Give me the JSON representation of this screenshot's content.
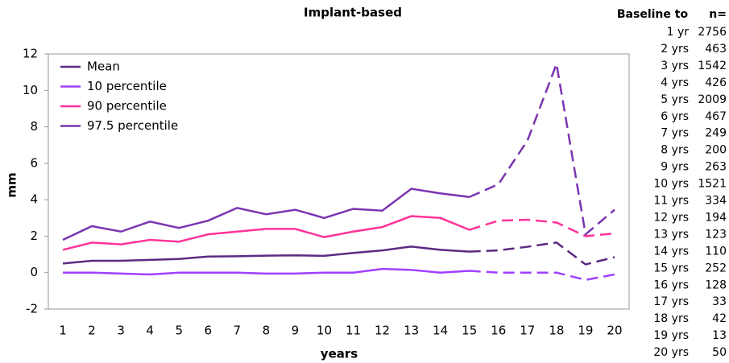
{
  "chart_data": {
    "type": "line",
    "title": "Implant-based",
    "x_label": "years",
    "y_label": "mm",
    "categories": [
      "1",
      "2",
      "3",
      "4",
      "5",
      "6",
      "7",
      "8",
      "9",
      "10",
      "11",
      "12",
      "13",
      "14",
      "15",
      "16",
      "17",
      "18",
      "19",
      "20"
    ],
    "dashed_from": "15",
    "series": [
      {
        "name": "Mean",
        "color": "#5c2a83",
        "values": [
          0.5,
          0.65,
          0.65,
          0.7,
          0.75,
          0.88,
          0.9,
          0.93,
          0.95,
          0.92,
          1.08,
          1.22,
          1.43,
          1.25,
          1.15,
          1.22,
          1.42,
          1.65,
          0.45,
          0.85
        ]
      },
      {
        "name": "10 percentile",
        "color": "#a040ff",
        "values": [
          0,
          0,
          -0.05,
          -0.1,
          0,
          0,
          0,
          -0.05,
          -0.05,
          0,
          0,
          0.2,
          0.15,
          0,
          0.1,
          0,
          0,
          0,
          -0.4,
          -0.1
        ]
      },
      {
        "name": "90 percentile",
        "color": "#ff3399",
        "values": [
          1.25,
          1.65,
          1.55,
          1.8,
          1.7,
          2.1,
          2.25,
          2.4,
          2.4,
          1.95,
          2.25,
          2.5,
          3.1,
          3.0,
          2.35,
          2.85,
          2.9,
          2.75,
          2.0,
          2.15
        ]
      },
      {
        "name": "97.5 percentile",
        "color": "#7b35b0",
        "values": [
          1.8,
          2.55,
          2.25,
          2.8,
          2.45,
          2.85,
          3.55,
          3.2,
          3.45,
          3.0,
          3.5,
          3.4,
          4.6,
          4.35,
          4.15,
          4.85,
          7.25,
          11.45,
          2.1,
          3.45
        ]
      }
    ],
    "ylim": [
      -2,
      12
    ],
    "yticks": [
      -2,
      0,
      2,
      4,
      6,
      8,
      10,
      12
    ],
    "grid": false,
    "legend": "upper left"
  },
  "table": {
    "header": [
      "Baseline to",
      "n="
    ],
    "rows": [
      [
        "1 yr",
        "2756"
      ],
      [
        "2 yrs",
        "463"
      ],
      [
        "3 yrs",
        "1542"
      ],
      [
        "4 yrs",
        "426"
      ],
      [
        "5 yrs",
        "2009"
      ],
      [
        "6 yrs",
        "467"
      ],
      [
        "7 yrs",
        "249"
      ],
      [
        "8 yrs",
        "200"
      ],
      [
        "9 yrs",
        "263"
      ],
      [
        "10 yrs",
        "1521"
      ],
      [
        "11 yrs",
        "334"
      ],
      [
        "12 yrs",
        "194"
      ],
      [
        "13 yrs",
        "123"
      ],
      [
        "14 yrs",
        "110"
      ],
      [
        "15 yrs",
        "252"
      ],
      [
        "16 yrs",
        "128"
      ],
      [
        "17 yrs",
        "33"
      ],
      [
        "18 yrs",
        "42"
      ],
      [
        "19 yrs",
        "13"
      ],
      [
        "20 yrs",
        "50"
      ]
    ]
  }
}
